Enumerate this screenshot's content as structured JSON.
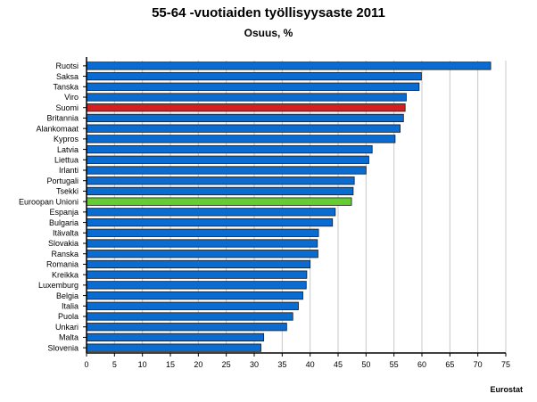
{
  "title": "55-64 -vuotiaiden työllisyysaste 2011",
  "subtitle": "Osuus, %",
  "source": "Eurostat",
  "colors": {
    "default_bar": "#0a6bd1",
    "highlight_finland": "#d21f1f",
    "highlight_eu": "#66cc33",
    "grid": "#c8c8c8",
    "axis": "#000000"
  },
  "chart_data": {
    "type": "bar",
    "orientation": "horizontal",
    "title": "55-64 -vuotiaiden työllisyysaste 2011",
    "subtitle": "Osuus, %",
    "xlabel": "",
    "ylabel": "",
    "xlim": [
      0,
      75
    ],
    "x_ticks": [
      0,
      5,
      10,
      15,
      20,
      25,
      30,
      35,
      40,
      45,
      50,
      55,
      60,
      65,
      70,
      75
    ],
    "grid": "vertical",
    "categories": [
      "Ruotsi",
      "Saksa",
      "Tanska",
      "Viro",
      "Suomi",
      "Britannia",
      "Alankomaat",
      "Kypros",
      "Latvia",
      "Liettua",
      "Irlanti",
      "Portugali",
      "Tsekki",
      "Euroopan Unioni",
      "Espanja",
      "Bulgaria",
      "Itävalta",
      "Slovakia",
      "Ranska",
      "Romania",
      "Kreikka",
      "Luxemburg",
      "Belgia",
      "Italia",
      "Puola",
      "Unkari",
      "Malta",
      "Slovenia"
    ],
    "values": [
      72.3,
      59.9,
      59.5,
      57.2,
      57.0,
      56.7,
      56.1,
      55.2,
      51.1,
      50.5,
      50.0,
      47.9,
      47.7,
      47.4,
      44.5,
      44.0,
      41.5,
      41.3,
      41.4,
      40.0,
      39.4,
      39.3,
      38.7,
      37.9,
      36.9,
      35.8,
      31.7,
      31.2
    ],
    "highlight": {
      "Suomi": "highlight_finland",
      "Euroopan Unioni": "highlight_eu"
    }
  }
}
